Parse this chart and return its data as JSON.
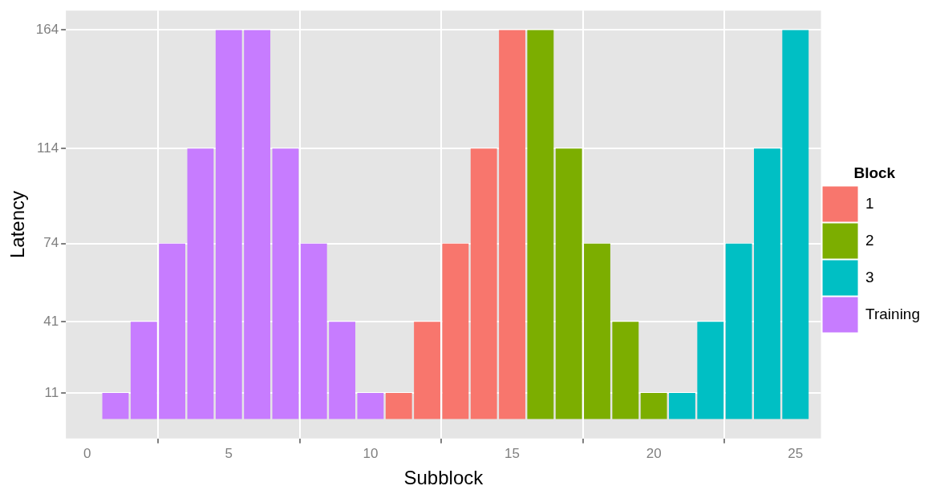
{
  "chart_data": {
    "type": "bar",
    "xlabel": "Subblock",
    "ylabel": "Latency",
    "legend_title": "Block",
    "legend": "right",
    "grid": true,
    "xlim": [
      -0.75,
      25.9
    ],
    "xticks": [
      0,
      5,
      10,
      15,
      20,
      25
    ],
    "ylim": [
      -8.2,
      172.2
    ],
    "yticks": [
      11,
      41,
      74,
      114,
      164
    ],
    "series": [
      {
        "name": "1",
        "color": "#f8766d",
        "x": [
          11,
          12,
          13,
          14,
          15
        ],
        "values": [
          11,
          41,
          74,
          114,
          164
        ]
      },
      {
        "name": "2",
        "color": "#7cae00",
        "x": [
          16,
          17,
          18,
          19,
          20
        ],
        "values": [
          164,
          114,
          74,
          41,
          11
        ]
      },
      {
        "name": "3",
        "color": "#00bfc4",
        "x": [
          21,
          22,
          23,
          24,
          25
        ],
        "values": [
          11,
          41,
          74,
          114,
          164
        ]
      },
      {
        "name": "Training",
        "color": "#c77cff",
        "x": [
          1,
          2,
          3,
          4,
          5,
          6,
          7,
          8,
          9,
          10
        ],
        "values": [
          11,
          41,
          74,
          114,
          164,
          164,
          114,
          74,
          41,
          11
        ]
      }
    ]
  }
}
